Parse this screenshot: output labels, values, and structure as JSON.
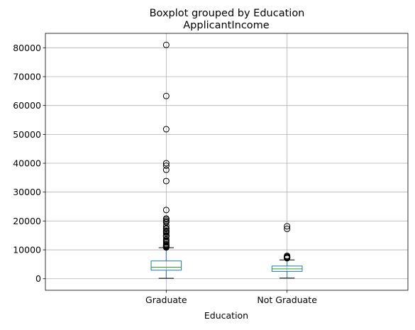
{
  "chart_data": {
    "type": "boxplot",
    "suptitle": "Boxplot grouped by Education",
    "title": "ApplicantIncome",
    "xlabel": "Education",
    "ylabel": "",
    "categories": [
      "Graduate",
      "Not Graduate"
    ],
    "ylim": [
      -4000,
      85000
    ],
    "yticks": [
      0,
      10000,
      20000,
      30000,
      40000,
      50000,
      60000,
      70000,
      80000
    ],
    "grid": true,
    "box_color": "#1f77b4",
    "median_color": "#2ca02c",
    "boxes": [
      {
        "category": "Graduate",
        "whisker_low": 150,
        "q1": 2950,
        "median": 4000,
        "q3": 6150,
        "whisker_high": 10750,
        "outliers": [
          81000,
          63300,
          51800,
          39999,
          39147,
          37719,
          33846,
          23803,
          20833,
          20667,
          20166,
          19730,
          19484,
          18333,
          17500,
          17263,
          16692,
          16666,
          16250,
          16120,
          15759,
          15000,
          14999,
          14880,
          14683,
          14583,
          13650,
          13262,
          12841,
          12500,
          12000,
          11757,
          11500,
          11417,
          11250,
          11146,
          11000,
          10833
        ]
      },
      {
        "category": "Not Graduate",
        "whisker_low": 210,
        "q1": 2550,
        "median": 3400,
        "q3": 4400,
        "whisker_high": 6500,
        "outliers": [
          18165,
          17263,
          7933,
          7660,
          7583,
          7451,
          7333,
          7200,
          7142,
          7100
        ]
      }
    ]
  }
}
